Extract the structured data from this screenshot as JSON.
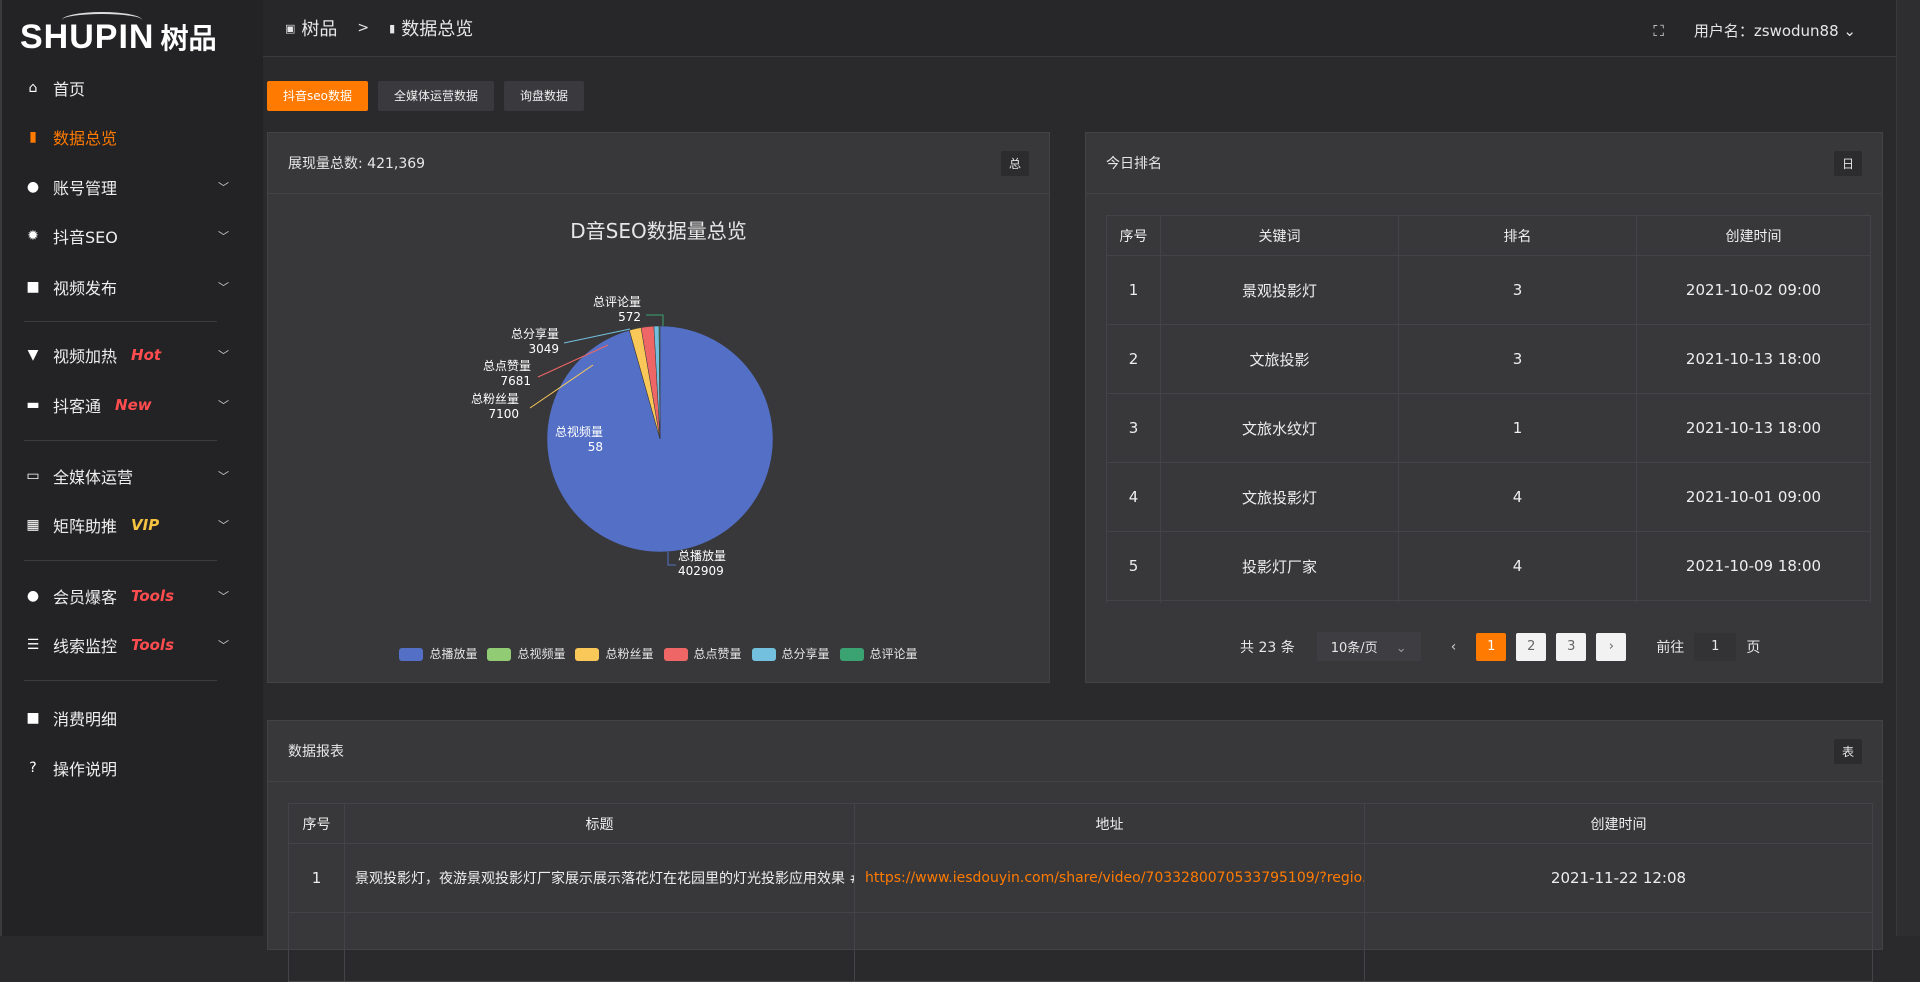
{
  "logo": {
    "en": "SHUPIN",
    "cn": "树品"
  },
  "breadcrumb": {
    "home": "树品",
    "sep": ">",
    "current": "数据总览"
  },
  "user": {
    "label": "用户名：zswodun88"
  },
  "sidebar": {
    "items": [
      {
        "label": "首页",
        "icon": "home-icon",
        "glyph": "⌂"
      },
      {
        "label": "数据总览",
        "icon": "bar-chart-icon",
        "glyph": "▮",
        "active": true
      },
      {
        "label": "账号管理",
        "icon": "user-icon",
        "glyph": "●",
        "chev": true
      },
      {
        "label": "抖音SEO",
        "icon": "gear-icon",
        "glyph": "✹",
        "chev": true
      },
      {
        "label": "视频发布",
        "icon": "camera-icon",
        "glyph": "■",
        "chev": true
      },
      {
        "label": "视频加热",
        "icon": "flame-icon",
        "glyph": "▼",
        "badge": "Hot",
        "badgeColor": "#ff4d4f",
        "chev": true
      },
      {
        "label": "抖客通",
        "icon": "chat-icon",
        "glyph": "▬",
        "badge": "New",
        "badgeColor": "#ff4d4f",
        "chev": true
      },
      {
        "label": "全媒体运营",
        "icon": "monitor-icon",
        "glyph": "▭",
        "chev": true
      },
      {
        "label": "矩阵助推",
        "icon": "grid-icon",
        "glyph": "▦",
        "badge": "VIP",
        "badgeColor": "#f5c342",
        "chev": true
      },
      {
        "label": "会员爆客",
        "icon": "member-icon",
        "glyph": "●",
        "badge": "Tools",
        "badgeColor": "#ff4d4f",
        "chev": true
      },
      {
        "label": "线索监控",
        "icon": "sliders-icon",
        "glyph": "☰",
        "badge": "Tools",
        "badgeColor": "#ff4d4f",
        "chev": true
      },
      {
        "label": "消费明细",
        "icon": "wallet-icon",
        "glyph": "■"
      },
      {
        "label": "操作说明",
        "icon": "help-icon",
        "glyph": "?"
      }
    ]
  },
  "tabs": [
    "抖音seo数据",
    "全媒体运营数据",
    "询盘数据"
  ],
  "overview": {
    "title": "展现量总数: 421,369",
    "tag": "总"
  },
  "chart_data": {
    "type": "pie",
    "title": "D音SEO数据量总览",
    "legend_position": "bottom",
    "categories": [
      "总播放量",
      "总视频量",
      "总粉丝量",
      "总点赞量",
      "总分享量",
      "总评论量"
    ],
    "values": [
      402909,
      58,
      7100,
      7681,
      3049,
      572
    ],
    "colors": [
      "#5470c6",
      "#91cc75",
      "#fac858",
      "#ee6666",
      "#73c0de",
      "#3ba272"
    ]
  },
  "ranking": {
    "title": "今日排名",
    "tag": "日",
    "columns": [
      "序号",
      "关键词",
      "排名",
      "创建时间"
    ],
    "rows": [
      [
        "1",
        "景观投影灯",
        "3",
        "2021-10-02 09:00"
      ],
      [
        "2",
        "文旅投影",
        "3",
        "2021-10-13 18:00"
      ],
      [
        "3",
        "文旅水纹灯",
        "1",
        "2021-10-13 18:00"
      ],
      [
        "4",
        "文旅投影灯",
        "4",
        "2021-10-01 09:00"
      ],
      [
        "5",
        "投影灯厂家",
        "4",
        "2021-10-09 18:00"
      ]
    ],
    "pager": {
      "total": "共 23 条",
      "size": "10条/页",
      "pages": [
        "1",
        "2",
        "3"
      ],
      "goto": "前往",
      "goto_value": "1",
      "page_suffix": "页"
    }
  },
  "report": {
    "title": "数据报表",
    "tag": "表",
    "columns": [
      "序号",
      "标题",
      "地址",
      "创建时间"
    ],
    "rows": [
      [
        "1",
        "景观投影灯，夜游景观投影灯厂家展示展示落花灯在花园里的灯光投影应用效果 #",
        "https://www.iesdouyin.com/share/video/7033280070533795109/?regio...",
        "2021-11-22 12:08"
      ]
    ]
  }
}
